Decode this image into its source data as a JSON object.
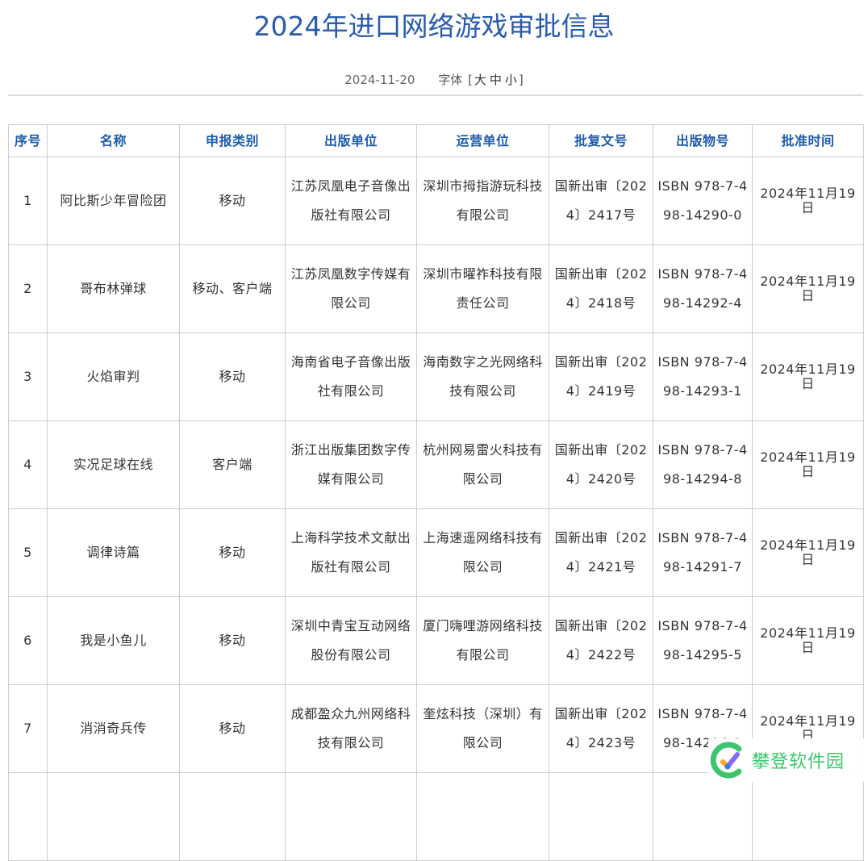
{
  "title": "2024年进口网络游戏审批信息",
  "date": "2024-11-20",
  "font_size": {
    "label": "字体",
    "open": "[",
    "large": "大",
    "medium": "中",
    "small": "小",
    "close": "]"
  },
  "table": {
    "headers": [
      "序号",
      "名称",
      "申报类别",
      "出版单位",
      "运营单位",
      "批复文号",
      "出版物号",
      "批准时间"
    ],
    "rows": [
      [
        "1",
        "阿比斯少年冒险团",
        "移动",
        "江苏凤凰电子音像出版社有限公司",
        "深圳市拇指游玩科技有限公司",
        "国新出审〔2024〕2417号",
        "ISBN 978-7-498-14290-0",
        "2024年11月19日"
      ],
      [
        "2",
        "哥布林弹球",
        "移动、客户端",
        "江苏凤凰数字传媒有限公司",
        "深圳市曜祚科技有限责任公司",
        "国新出审〔2024〕2418号",
        "ISBN 978-7-498-14292-4",
        "2024年11月19日"
      ],
      [
        "3",
        "火焰审判",
        "移动",
        "海南省电子音像出版社有限公司",
        "海南数字之光网络科技有限公司",
        "国新出审〔2024〕2419号",
        "ISBN 978-7-498-14293-1",
        "2024年11月19日"
      ],
      [
        "4",
        "实况足球在线",
        "客户端",
        "浙江出版集团数字传媒有限公司",
        "杭州网易雷火科技有限公司",
        "国新出审〔2024〕2420号",
        "ISBN 978-7-498-14294-8",
        "2024年11月19日"
      ],
      [
        "5",
        "调律诗篇",
        "移动",
        "上海科学技术文献出版社有限公司",
        "上海速遥网络科技有限公司",
        "国新出审〔2024〕2421号",
        "ISBN 978-7-498-14291-7",
        "2024年11月19日"
      ],
      [
        "6",
        "我是小鱼儿",
        "移动",
        "深圳中青宝互动网络股份有限公司",
        "厦门嗨哩游网络科技有限公司",
        "国新出审〔2024〕2422号",
        "ISBN 978-7-498-14295-5",
        "2024年11月19日"
      ],
      [
        "7",
        "消消奇兵传",
        "移动",
        "成都盈众九州网络科技有限公司",
        "奎炫科技（深圳）有限公司",
        "国新出审〔2024〕2423号",
        "ISBN 978-7-498-14296-2",
        "2024年11月19日"
      ]
    ]
  },
  "watermark": {
    "text": "攀登软件园",
    "icon": "check-logo-icon",
    "color": "#3ec46d"
  },
  "colors": {
    "title": "#2a5caa",
    "header": "#1f5ca8",
    "border": "#cccccc"
  }
}
